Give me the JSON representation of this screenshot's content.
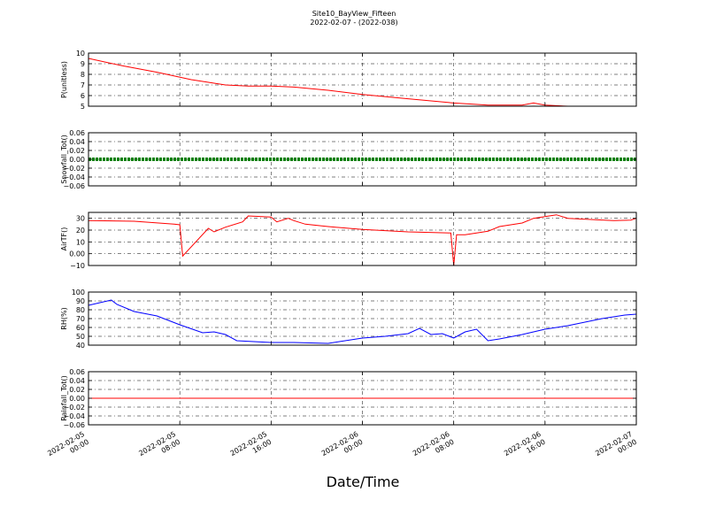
{
  "figure": {
    "title": "Site10_BayView_Fifteen",
    "subtitle": "2022-02-07 - (2022-038)",
    "xlabel": "Date/Time"
  },
  "chart_data": [
    {
      "type": "line",
      "ylabel": "P(unitless)",
      "ylim": [
        5,
        10
      ],
      "yticks": [
        5,
        6,
        7,
        8,
        9,
        10
      ],
      "grid": true,
      "color": "#ff0000",
      "x": [
        "2022-02-05 00:00",
        "2022-02-05 03:00",
        "2022-02-05 06:00",
        "2022-02-05 09:00",
        "2022-02-05 12:00",
        "2022-02-05 14:00",
        "2022-02-05 16:00",
        "2022-02-05 18:00",
        "2022-02-05 21:00",
        "2022-02-06 00:00",
        "2022-02-06 04:00",
        "2022-02-06 08:00",
        "2022-02-06 11:00",
        "2022-02-06 14:00",
        "2022-02-06 15:00",
        "2022-02-06 16:00",
        "2022-02-06 18:00",
        "2022-02-07 00:00"
      ],
      "y": [
        9.5,
        8.8,
        8.2,
        7.5,
        7.0,
        6.9,
        6.9,
        6.8,
        6.5,
        6.1,
        5.7,
        5.3,
        5.1,
        5.1,
        5.3,
        5.1,
        5.0,
        5.0
      ]
    },
    {
      "type": "line",
      "ylabel": "Snowfall_Tot()",
      "ylim": [
        -0.06,
        0.06
      ],
      "yticks": [
        -0.06,
        -0.04,
        -0.02,
        0.0,
        0.02,
        0.04,
        0.06
      ],
      "grid": true,
      "color": "#008000",
      "marker": "dot",
      "x": [
        "2022-02-05 00:00",
        "2022-02-07 00:00"
      ],
      "y": [
        0.0,
        0.0
      ]
    },
    {
      "type": "line",
      "ylabel": "AirTF()",
      "ylim": [
        -10,
        35
      ],
      "yticks": [
        -10,
        0,
        10,
        20,
        30
      ],
      "grid": true,
      "color": "#ff0000",
      "x": [
        "2022-02-05 00:00",
        "2022-02-05 04:00",
        "2022-02-05 07:30",
        "2022-02-05 08:00",
        "2022-02-05 08:15",
        "2022-02-05 10:30",
        "2022-02-05 11:00",
        "2022-02-05 12:00",
        "2022-02-05 13:30",
        "2022-02-05 14:00",
        "2022-02-05 16:00",
        "2022-02-05 16:30",
        "2022-02-05 17:30",
        "2022-02-05 18:00",
        "2022-02-05 19:00",
        "2022-02-05 21:00",
        "2022-02-06 00:00",
        "2022-02-06 04:00",
        "2022-02-06 07:45",
        "2022-02-06 08:00",
        "2022-02-06 08:15",
        "2022-02-06 09:00",
        "2022-02-06 11:00",
        "2022-02-06 12:00",
        "2022-02-06 14:00",
        "2022-02-06 15:00",
        "2022-02-06 16:00",
        "2022-02-06 17:00",
        "2022-02-06 18:00",
        "2022-02-06 22:00",
        "2022-02-06 23:30",
        "2022-02-07 00:00"
      ],
      "y": [
        28,
        27.5,
        25,
        24.5,
        -2,
        21.5,
        18.5,
        22.5,
        27,
        32,
        31,
        27,
        30,
        28,
        25,
        23,
        20.5,
        18.5,
        17.5,
        -10,
        16,
        16,
        19,
        23,
        26,
        30,
        31.5,
        33,
        30,
        28,
        28.5,
        30
      ]
    },
    {
      "type": "line",
      "ylabel": "RH(%)",
      "ylim": [
        40,
        100
      ],
      "yticks": [
        40,
        50,
        60,
        70,
        80,
        90,
        100
      ],
      "grid": true,
      "color": "#0000ff",
      "x": [
        "2022-02-05 00:00",
        "2022-02-05 01:00",
        "2022-02-05 02:00",
        "2022-02-05 02:30",
        "2022-02-05 04:00",
        "2022-02-05 06:00",
        "2022-02-05 08:00",
        "2022-02-05 10:00",
        "2022-02-05 11:00",
        "2022-02-05 12:00",
        "2022-02-05 13:00",
        "2022-02-05 16:00",
        "2022-02-05 18:00",
        "2022-02-05 21:00",
        "2022-02-06 00:00",
        "2022-02-06 02:00",
        "2022-02-06 04:00",
        "2022-02-06 05:00",
        "2022-02-06 06:00",
        "2022-02-06 07:00",
        "2022-02-06 08:00",
        "2022-02-06 09:00",
        "2022-02-06 10:00",
        "2022-02-06 11:00",
        "2022-02-06 12:00",
        "2022-02-06 14:00",
        "2022-02-06 16:00",
        "2022-02-06 18:00",
        "2022-02-06 21:00",
        "2022-02-06 23:00",
        "2022-02-07 00:00"
      ],
      "y": [
        85,
        88,
        91,
        86,
        78,
        73,
        63,
        54,
        55,
        52,
        45,
        43,
        43,
        42,
        48,
        50,
        53,
        59,
        52,
        53,
        48,
        55,
        58,
        45,
        47,
        52,
        58,
        62,
        70,
        74,
        75
      ]
    },
    {
      "type": "line",
      "ylabel": "Rainfall_Tot()",
      "ylim": [
        -0.06,
        0.06
      ],
      "yticks": [
        -0.06,
        -0.04,
        -0.02,
        0.0,
        0.02,
        0.04,
        0.06
      ],
      "grid": true,
      "color": "#ff0000",
      "x": [
        "2022-02-05 00:00",
        "2022-02-07 00:00"
      ],
      "y": [
        0.0,
        0.0
      ]
    }
  ],
  "x_axis": {
    "range": [
      "2022-02-05 00:00",
      "2022-02-07 00:00"
    ],
    "ticks": [
      {
        "value": "2022-02-05 00:00",
        "label": [
          "2022-02-05",
          "00:00"
        ]
      },
      {
        "value": "2022-02-05 08:00",
        "label": [
          "2022-02-05",
          "08:00"
        ]
      },
      {
        "value": "2022-02-05 16:00",
        "label": [
          "2022-02-05",
          "16:00"
        ]
      },
      {
        "value": "2022-02-06 00:00",
        "label": [
          "2022-02-06",
          "00:00"
        ]
      },
      {
        "value": "2022-02-06 08:00",
        "label": [
          "2022-02-06",
          "08:00"
        ]
      },
      {
        "value": "2022-02-06 16:00",
        "label": [
          "2022-02-06",
          "16:00"
        ]
      },
      {
        "value": "2022-02-07 00:00",
        "label": [
          "2022-02-07",
          "00:00"
        ]
      }
    ]
  }
}
